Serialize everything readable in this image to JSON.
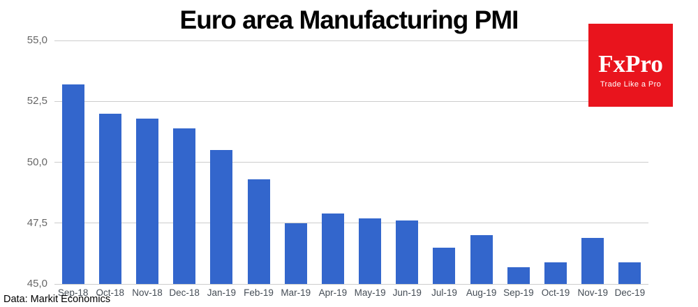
{
  "title": "Euro area Manufacturing PMI",
  "source_note": "Data: Markit Economics",
  "logo": {
    "brand": "FxPro",
    "tagline": "Trade Like a Pro",
    "bg_color": "#e9141d",
    "text_color": "#ffffff"
  },
  "chart_data": {
    "type": "bar",
    "title": "Euro area Manufacturing PMI",
    "categories": [
      "Sep-18",
      "Oct-18",
      "Nov-18",
      "Dec-18",
      "Jan-19",
      "Feb-19",
      "Mar-19",
      "Apr-19",
      "May-19",
      "Jun-19",
      "Jul-19",
      "Aug-19",
      "Sep-19",
      "Oct-19",
      "Nov-19",
      "Dec-19"
    ],
    "values": [
      53.2,
      52.0,
      51.8,
      51.4,
      50.5,
      49.3,
      47.5,
      47.9,
      47.7,
      47.6,
      46.5,
      47.0,
      45.7,
      45.9,
      46.9,
      45.9
    ],
    "xlabel": "",
    "ylabel": "",
    "ylim": [
      45.0,
      55.0
    ],
    "yticks": [
      {
        "value": 55.0,
        "label": "55,0"
      },
      {
        "value": 52.5,
        "label": "52,5"
      },
      {
        "value": 50.0,
        "label": "50,0"
      },
      {
        "value": 47.5,
        "label": "47,5"
      },
      {
        "value": 45.0,
        "label": "45,0"
      }
    ],
    "grid": true,
    "legend": "none",
    "bar_color": "#3366cc",
    "gridline_color": "#cccccc"
  }
}
